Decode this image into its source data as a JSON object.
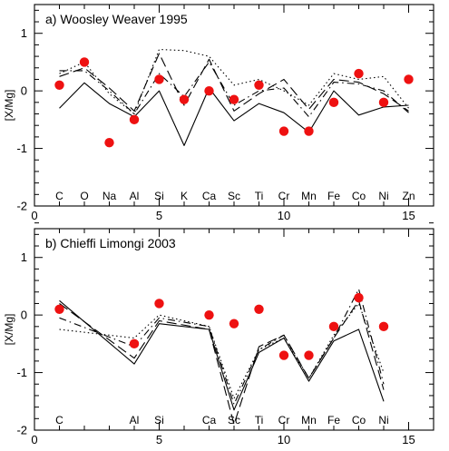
{
  "chart_data": [
    {
      "type": "line",
      "title": "a) Woosley Weaver 1995",
      "ylabel": "[X/Mg]",
      "xlim": [
        0,
        16
      ],
      "ylim": [
        -2,
        1.5
      ],
      "xticks": [
        0,
        5,
        10,
        15
      ],
      "yticks": [
        -2,
        -1,
        0,
        1
      ],
      "elements": [
        {
          "x": 1,
          "label": "C"
        },
        {
          "x": 2,
          "label": "O"
        },
        {
          "x": 3,
          "label": "Na"
        },
        {
          "x": 4,
          "label": "Al"
        },
        {
          "x": 5,
          "label": "Si"
        },
        {
          "x": 6,
          "label": "K"
        },
        {
          "x": 7,
          "label": "Ca"
        },
        {
          "x": 8,
          "label": "Sc"
        },
        {
          "x": 9,
          "label": "Ti"
        },
        {
          "x": 10,
          "label": "Cr"
        },
        {
          "x": 11,
          "label": "Mn"
        },
        {
          "x": 12,
          "label": "Fe"
        },
        {
          "x": 13,
          "label": "Co"
        },
        {
          "x": 14,
          "label": "Ni"
        },
        {
          "x": 15,
          "label": "Zn"
        }
      ],
      "series": [
        {
          "style": "solid",
          "x": [
            1,
            2,
            3,
            4,
            5,
            6,
            7,
            8,
            9,
            10,
            11,
            12,
            13,
            14,
            15
          ],
          "y": [
            -0.3,
            0.14,
            -0.22,
            -0.45,
            0.0,
            -0.95,
            0.05,
            -0.52,
            -0.22,
            -0.38,
            -0.72,
            0.0,
            -0.42,
            -0.28,
            -0.25
          ]
        },
        {
          "style": "dashed",
          "x": [
            1,
            2,
            3,
            4,
            5,
            6,
            7,
            8,
            9,
            10,
            11,
            12,
            13,
            14,
            15
          ],
          "y": [
            0.25,
            0.4,
            0.05,
            -0.35,
            0.65,
            -0.25,
            0.55,
            -0.35,
            -0.05,
            0.2,
            -0.32,
            0.2,
            0.15,
            -0.05,
            -0.35
          ]
        },
        {
          "style": "dashdot",
          "x": [
            1,
            2,
            3,
            4,
            5,
            6,
            7,
            8,
            9,
            10,
            11,
            12,
            13,
            14,
            15
          ],
          "y": [
            0.35,
            0.35,
            0.0,
            -0.4,
            0.3,
            -0.1,
            0.5,
            -0.25,
            0.0,
            0.05,
            -0.45,
            0.15,
            0.12,
            0.0,
            -0.38
          ]
        },
        {
          "style": "dotted",
          "x": [
            1,
            2,
            3,
            4,
            5,
            6,
            7,
            8,
            9,
            10,
            11,
            12,
            13,
            14,
            15
          ],
          "y": [
            0.3,
            0.5,
            -0.05,
            -0.4,
            0.72,
            0.7,
            0.6,
            0.1,
            0.2,
            0.0,
            -0.25,
            0.3,
            0.2,
            0.25,
            -0.3
          ]
        }
      ],
      "observations": {
        "x": [
          1,
          2,
          3,
          4,
          5,
          6,
          7,
          8,
          9,
          10,
          11,
          12,
          13,
          14,
          15
        ],
        "y": [
          0.1,
          0.5,
          -0.9,
          -0.5,
          0.2,
          -0.15,
          0.0,
          -0.15,
          0.1,
          -0.7,
          -0.7,
          -0.2,
          0.3,
          -0.2,
          0.2
        ]
      }
    },
    {
      "type": "line",
      "title": "b) Chieffi Limongi 2003",
      "ylabel": "[X/Mg]",
      "xlim": [
        0,
        16
      ],
      "ylim": [
        -2,
        1.5
      ],
      "xticks": [
        0,
        5,
        10,
        15
      ],
      "yticks": [
        -2,
        -1,
        0,
        1
      ],
      "elements": [
        {
          "x": 1,
          "label": "C"
        },
        {
          "x": 4,
          "label": "Al"
        },
        {
          "x": 5,
          "label": "Si"
        },
        {
          "x": 7,
          "label": "Ca"
        },
        {
          "x": 8,
          "label": "Sc"
        },
        {
          "x": 9,
          "label": "Ti"
        },
        {
          "x": 10,
          "label": "Cr"
        },
        {
          "x": 11,
          "label": "Mn"
        },
        {
          "x": 12,
          "label": "Fe"
        },
        {
          "x": 13,
          "label": "Co"
        },
        {
          "x": 14,
          "label": "Ni"
        }
      ],
      "series": [
        {
          "style": "solid",
          "x": [
            1,
            4,
            5,
            7,
            8,
            9,
            10,
            11,
            12,
            13,
            14
          ],
          "y": [
            0.25,
            -0.85,
            -0.15,
            -0.25,
            -1.65,
            -0.65,
            -0.4,
            -1.15,
            -0.45,
            -0.25,
            -1.5
          ]
        },
        {
          "style": "dashed",
          "x": [
            1,
            4,
            5,
            7,
            8,
            9,
            10,
            11,
            12,
            13,
            14
          ],
          "y": [
            0.2,
            -0.75,
            -0.1,
            -0.25,
            -1.9,
            -0.55,
            -0.35,
            -1.1,
            -0.4,
            0.25,
            -1.3
          ]
        },
        {
          "style": "dashdot",
          "x": [
            1,
            4,
            5,
            7,
            8,
            9,
            10,
            11,
            12,
            13,
            14
          ],
          "y": [
            -0.05,
            -0.55,
            -0.05,
            -0.2,
            -1.55,
            -0.6,
            -0.35,
            -1.1,
            -0.4,
            0.45,
            -1.2
          ]
        },
        {
          "style": "dotted",
          "x": [
            1,
            4,
            5,
            7,
            8,
            9,
            10,
            11,
            12,
            13,
            14
          ],
          "y": [
            -0.25,
            -0.4,
            0.0,
            -0.2,
            -1.45,
            -0.6,
            -0.4,
            -1.1,
            -0.35,
            0.2,
            -1.0
          ]
        }
      ],
      "observations": {
        "x": [
          1,
          4,
          5,
          7,
          8,
          9,
          10,
          11,
          12,
          13,
          14
        ],
        "y": [
          0.1,
          -0.5,
          0.2,
          0.0,
          -0.15,
          0.1,
          -0.7,
          -0.7,
          -0.2,
          0.3,
          -0.2
        ]
      }
    }
  ],
  "style": {
    "observation_color": "#ee1111",
    "line_color": "#000000"
  }
}
